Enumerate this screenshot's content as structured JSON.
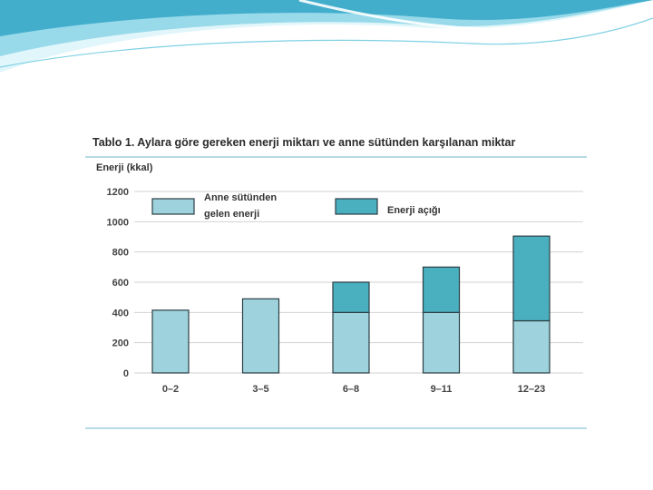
{
  "page": {
    "colors": {
      "wave_light": "#c9eef5",
      "wave_mid": "#7fd0e4",
      "wave_dark": "#3aa9c9",
      "rule": "#6fb6cf"
    }
  },
  "figure": {
    "title": "Tablo 1. Aylara göre gereken enerji miktarı ve anne sütünden karşılanan miktar"
  },
  "chart_data": {
    "type": "bar",
    "stacked": true,
    "title": "Tablo 1. Aylara göre gereken enerji miktarı ve anne sütünden karşılanan miktar",
    "xlabel": "",
    "ylabel": "Enerji (kkal)",
    "ylim": [
      0,
      1200
    ],
    "yticks": [
      0,
      200,
      400,
      600,
      800,
      1000,
      1200
    ],
    "grid": true,
    "legend_position": "top",
    "categories": [
      "0–2",
      "3–5",
      "6–8",
      "9–11",
      "12–23"
    ],
    "series": [
      {
        "name": "Anne sütünden gelen enerji",
        "legend_lines": [
          "Anne sütünden",
          "gelen enerji"
        ],
        "color": "#9ed3dd",
        "values": [
          415,
          490,
          400,
          400,
          345
        ]
      },
      {
        "name": "Enerji açığı",
        "legend_lines": [
          "Enerji açığı"
        ],
        "color": "#4aafbf",
        "values": [
          0,
          0,
          200,
          300,
          560
        ]
      }
    ]
  }
}
